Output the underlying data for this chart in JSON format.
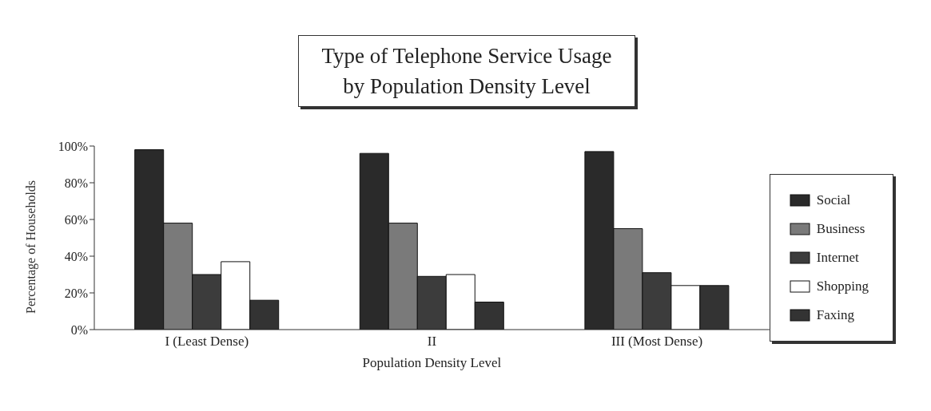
{
  "chart_data": {
    "type": "bar",
    "title": "Type of Telephone Service Usage\nby Population Density Level",
    "xlabel": "Population Density Level",
    "ylabel": "Percentage of Households",
    "categories": [
      "I (Least Dense)",
      "II",
      "III (Most Dense)"
    ],
    "series": [
      {
        "name": "Social",
        "color": "#2a2a2a",
        "values": [
          98,
          96,
          97
        ]
      },
      {
        "name": "Business",
        "color": "#7a7a7a",
        "values": [
          58,
          58,
          55
        ]
      },
      {
        "name": "Internet",
        "color": "#3c3c3c",
        "values": [
          30,
          29,
          31
        ]
      },
      {
        "name": "Shopping",
        "color": "#ffffff",
        "values": [
          37,
          30,
          24
        ]
      },
      {
        "name": "Faxing",
        "color": "#333333",
        "values": [
          16,
          15,
          24
        ]
      }
    ],
    "ylim": [
      0,
      100
    ],
    "yticks": [
      {
        "value": 0,
        "label": "0%"
      },
      {
        "value": 20,
        "label": "20%"
      },
      {
        "value": 40,
        "label": "40%"
      },
      {
        "value": 60,
        "label": "60%"
      },
      {
        "value": 80,
        "label": "80%"
      },
      {
        "value": 100,
        "label": "100%"
      }
    ],
    "grid": false,
    "legend": "right"
  }
}
